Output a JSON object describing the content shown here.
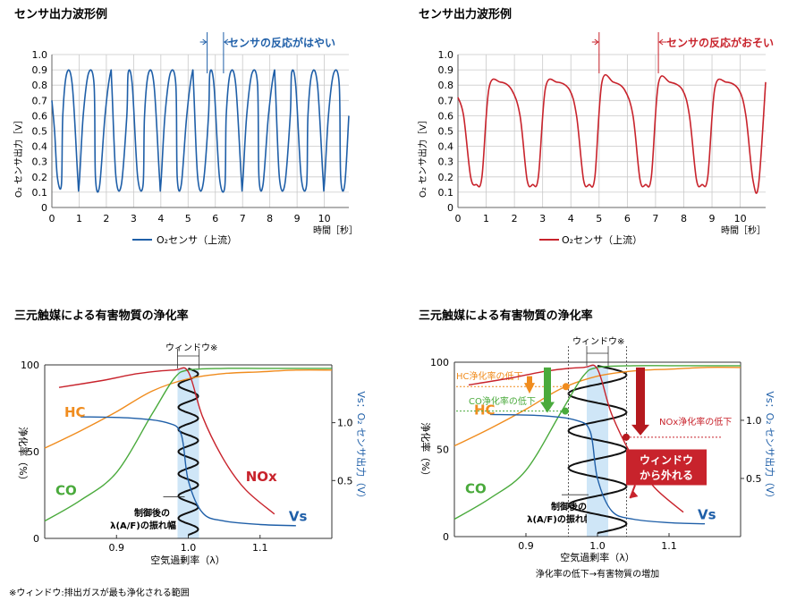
{
  "footnote": "※ウィンドウ:排出ガスが最も浄化される範囲",
  "colors": {
    "blue": "#1f5fa8",
    "red": "#c8232c",
    "orange": "#f08c1e",
    "green": "#4aaa3c",
    "darkred": "#b5191e",
    "window": "#cfe6f7"
  },
  "chart_data": [
    {
      "type": "line",
      "title": "センサ出力波形例",
      "ylabel": "O₂ センサ出力［V］",
      "xlabel": "時間［秒］",
      "ylim": [
        0,
        1.0
      ],
      "xlim": [
        0,
        10.9
      ],
      "xticks": [
        "0",
        "1",
        "2",
        "3",
        "4",
        "5",
        "6",
        "7",
        "8",
        "9",
        "10"
      ],
      "yticks": [
        "0",
        "0.1",
        "0.2",
        "0.3",
        "0.4",
        "0.5",
        "0.6",
        "0.7",
        "0.8",
        "0.9",
        "1.0"
      ],
      "grid": true,
      "annotation": "センサの反応がはやい",
      "annotation_x": [
        5.7,
        6.3
      ],
      "series": [
        {
          "name": "O₂センサ（上流）",
          "color": "#1f5fa8",
          "x": [
            0,
            0.1,
            0.2,
            0.35,
            0.4,
            0.55,
            0.75,
            0.95,
            1.0,
            1.15,
            1.35,
            1.55,
            1.6,
            1.75,
            1.95,
            2.15,
            2.2,
            2.35,
            2.55,
            2.75,
            2.8,
            2.95,
            3.15,
            3.35,
            3.4,
            3.55,
            3.75,
            3.95,
            4.0,
            4.15,
            4.35,
            4.55,
            4.6,
            4.75,
            4.95,
            5.15,
            5.2,
            5.35,
            5.55,
            5.75,
            5.8,
            5.95,
            6.15,
            6.35,
            6.4,
            6.55,
            6.75,
            6.95,
            7.0,
            7.15,
            7.35,
            7.55,
            7.6,
            7.75,
            7.95,
            8.15,
            8.2,
            8.35,
            8.55,
            8.75,
            8.8,
            8.95,
            9.15,
            9.35,
            9.4,
            9.55,
            9.75,
            9.95,
            10.0,
            10.15,
            10.35,
            10.55,
            10.6,
            10.75,
            10.9
          ],
          "y": [
            0.7,
            0.5,
            0.2,
            0.15,
            0.6,
            0.88,
            0.8,
            0.2,
            0.15,
            0.6,
            0.88,
            0.8,
            0.2,
            0.14,
            0.6,
            0.88,
            0.8,
            0.2,
            0.15,
            0.6,
            0.88,
            0.8,
            0.2,
            0.15,
            0.6,
            0.88,
            0.8,
            0.2,
            0.15,
            0.6,
            0.88,
            0.8,
            0.2,
            0.15,
            0.6,
            0.88,
            0.8,
            0.2,
            0.15,
            0.6,
            0.88,
            0.8,
            0.2,
            0.14,
            0.6,
            0.88,
            0.8,
            0.2,
            0.15,
            0.6,
            0.88,
            0.8,
            0.2,
            0.15,
            0.6,
            0.88,
            0.8,
            0.2,
            0.15,
            0.6,
            0.88,
            0.8,
            0.2,
            0.15,
            0.6,
            0.88,
            0.8,
            0.2,
            0.15,
            0.6,
            0.88,
            0.8,
            0.2,
            0.15,
            0.6
          ]
        }
      ]
    },
    {
      "type": "line",
      "title": "センサ出力波形例",
      "ylabel": "O₂ センサ出力［V］",
      "xlabel": "時間［秒］",
      "ylim": [
        0,
        1.0
      ],
      "xlim": [
        0,
        10.9
      ],
      "xticks": [
        "0",
        "1",
        "2",
        "3",
        "4",
        "5",
        "6",
        "7",
        "8",
        "9",
        "10"
      ],
      "yticks": [
        "0",
        "0.1",
        "0.2",
        "0.3",
        "0.4",
        "0.5",
        "0.6",
        "0.7",
        "0.8",
        "0.9",
        "1.0"
      ],
      "grid": true,
      "annotation": "センサの反応がおそい",
      "annotation_x": [
        5.0,
        7.1
      ],
      "series": [
        {
          "name": "O₂センサ（上流）",
          "color": "#c8232c",
          "x": [
            0,
            0.2,
            0.45,
            0.65,
            0.85,
            1.1,
            1.5,
            1.9,
            2.2,
            2.45,
            2.65,
            2.85,
            3.1,
            3.5,
            3.95,
            4.2,
            4.45,
            4.65,
            4.85,
            5.1,
            5.5,
            5.9,
            6.2,
            6.45,
            6.65,
            6.85,
            7.1,
            7.5,
            7.95,
            8.2,
            8.45,
            8.65,
            8.85,
            9.1,
            9.5,
            9.95,
            10.2,
            10.45,
            10.65,
            10.9
          ],
          "y": [
            0.72,
            0.6,
            0.2,
            0.15,
            0.2,
            0.78,
            0.82,
            0.77,
            0.6,
            0.18,
            0.15,
            0.2,
            0.78,
            0.82,
            0.77,
            0.6,
            0.18,
            0.15,
            0.2,
            0.82,
            0.82,
            0.77,
            0.6,
            0.18,
            0.15,
            0.2,
            0.81,
            0.82,
            0.77,
            0.6,
            0.18,
            0.15,
            0.2,
            0.78,
            0.82,
            0.77,
            0.6,
            0.18,
            0.15,
            0.82
          ]
        }
      ]
    },
    {
      "type": "line",
      "title": "三元触媒による有害物質の浄化率",
      "ylabel": "浄化率（%）",
      "y2label": "Vs：O₂ センサ出力（V）",
      "xlabel": "空気過剰率（λ）",
      "xlim": [
        0.8,
        1.2
      ],
      "ylim": [
        0,
        100
      ],
      "xticks": [
        "0.9",
        "1.0",
        "1.1"
      ],
      "yticks": [
        "0",
        "50",
        "100"
      ],
      "y2ticks": [
        "0.5",
        "1.0"
      ],
      "window_label": "ウィンドウ※",
      "window": [
        0.985,
        1.015
      ],
      "amplitude_label": [
        "制御後の",
        "λ(A/F)の振れ幅"
      ],
      "series": [
        {
          "name": "HC",
          "color": "#f08c1e",
          "x": [
            0.8,
            0.85,
            0.9,
            0.95,
            1.0,
            1.05,
            1.1,
            1.15,
            1.2
          ],
          "y": [
            52,
            62,
            73,
            85,
            92,
            95,
            96,
            97,
            97
          ]
        },
        {
          "name": "CO",
          "color": "#4aaa3c",
          "x": [
            0.8,
            0.85,
            0.9,
            0.95,
            0.98,
            1.0,
            1.05,
            1.1,
            1.15,
            1.2
          ],
          "y": [
            10,
            22,
            38,
            72,
            92,
            97,
            98,
            98,
            98,
            98
          ]
        },
        {
          "name": "NOx",
          "color": "#c8232c",
          "x": [
            0.82,
            0.88,
            0.93,
            0.98,
            1.0,
            1.02,
            1.05,
            1.08,
            1.12
          ],
          "y": [
            87,
            91,
            95,
            97,
            96,
            70,
            45,
            28,
            14
          ]
        },
        {
          "name": "Vs",
          "color": "#1f5fa8",
          "x": [
            0.85,
            0.92,
            0.97,
            0.99,
            1.0,
            1.02,
            1.05,
            1.1,
            1.15
          ],
          "y": [
            1.05,
            1.04,
            1.0,
            0.9,
            0.5,
            0.22,
            0.15,
            0.12,
            0.11
          ]
        }
      ]
    },
    {
      "type": "line",
      "title": "三元触媒による有害物質の浄化率",
      "ylabel": "浄化率（%）",
      "y2label": "Vs：O₂ センサ出力（V）",
      "xlabel": "空気過剰率（λ）",
      "xlabel2": "浄化率の低下→有害物質の増加",
      "xlim": [
        0.8,
        1.2
      ],
      "ylim": [
        0,
        100
      ],
      "xticks": [
        "0.9",
        "1.0",
        "1.1"
      ],
      "yticks": [
        "0",
        "50",
        "100"
      ],
      "y2ticks": [
        "0.5",
        "1.0"
      ],
      "window_label": "ウィンドウ※",
      "window": [
        0.985,
        1.015
      ],
      "amplitude_label": [
        "制御後の",
        "λ(A/F)の振れ幅"
      ],
      "callouts": {
        "hc": "HC浄化率の低下",
        "co": "CO浄化率の低下",
        "nox": "NOx浄化率の低下",
        "box": [
          "ウィンドウ",
          "から外れる"
        ]
      },
      "series": [
        {
          "name": "HC",
          "color": "#f08c1e",
          "x": [
            0.8,
            0.85,
            0.9,
            0.95,
            1.0,
            1.05,
            1.1,
            1.15,
            1.2
          ],
          "y": [
            52,
            62,
            73,
            85,
            92,
            95,
            96,
            97,
            97
          ]
        },
        {
          "name": "CO",
          "color": "#4aaa3c",
          "x": [
            0.8,
            0.85,
            0.9,
            0.95,
            0.98,
            1.0,
            1.05,
            1.1,
            1.15,
            1.2
          ],
          "y": [
            10,
            22,
            38,
            72,
            92,
            97,
            98,
            98,
            98,
            98
          ]
        },
        {
          "name": "NOx",
          "color": "#c8232c",
          "x": [
            0.82,
            0.88,
            0.93,
            0.98,
            1.0,
            1.02,
            1.05,
            1.08,
            1.12
          ],
          "y": [
            87,
            91,
            95,
            97,
            96,
            70,
            45,
            28,
            14
          ]
        },
        {
          "name": "Vs",
          "color": "#1f5fa8",
          "x": [
            0.85,
            0.92,
            0.97,
            0.99,
            1.0,
            1.02,
            1.05,
            1.1,
            1.15
          ],
          "y": [
            1.05,
            1.04,
            1.0,
            0.9,
            0.5,
            0.22,
            0.15,
            0.12,
            0.11
          ]
        }
      ]
    }
  ]
}
